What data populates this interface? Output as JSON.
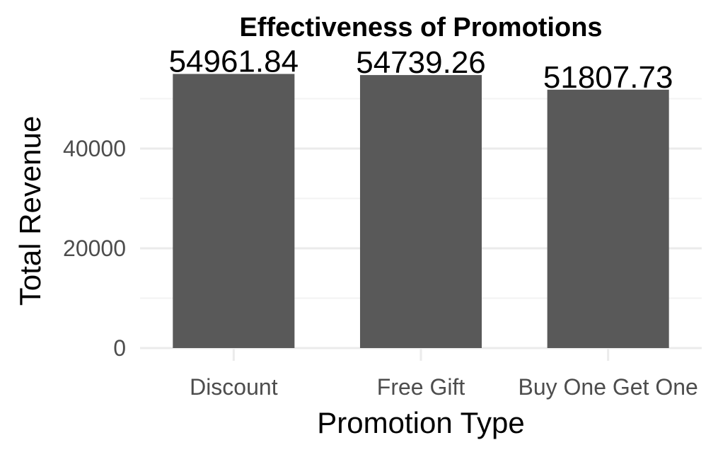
{
  "chart_data": {
    "type": "bar",
    "title": "Effectiveness of Promotions",
    "xlabel": "Promotion Type",
    "ylabel": "Total Revenue",
    "categories": [
      "Discount",
      "Free Gift",
      "Buy One Get One"
    ],
    "values": [
      54961.84,
      54739.26,
      51807.73
    ],
    "value_labels": [
      "54961.84",
      "54739.26",
      "51807.73"
    ],
    "yticks": [
      0,
      20000,
      40000
    ],
    "ytick_labels": [
      "0",
      "20000",
      "40000"
    ],
    "ylim": [
      0,
      57000
    ],
    "grid": true,
    "bar_color": "#595959"
  }
}
